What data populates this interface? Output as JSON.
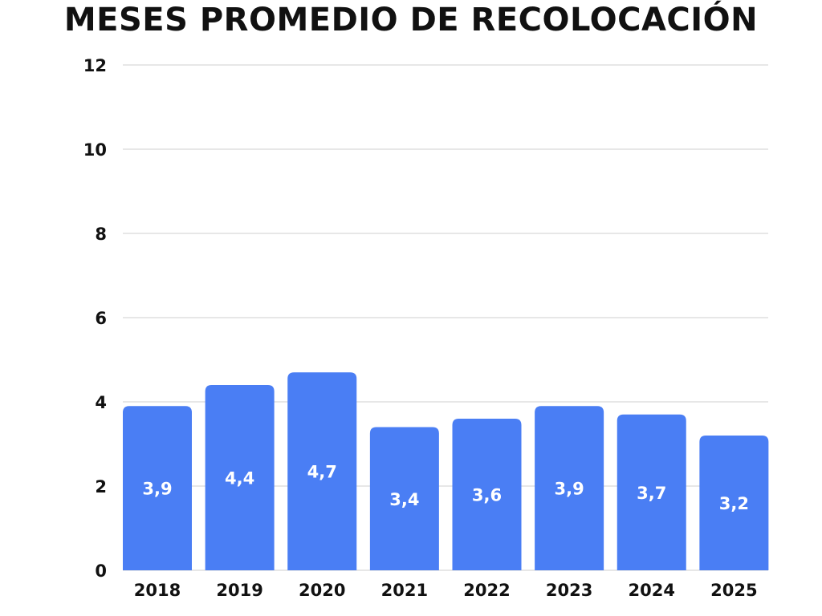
{
  "chart_data": {
    "type": "bar",
    "title": "MESES PROMEDIO DE RECOLOCACIÓN",
    "xlabel": "",
    "ylabel": "",
    "categories": [
      "2018",
      "2019",
      "2020",
      "2021",
      "2022",
      "2023",
      "2024",
      "2025"
    ],
    "values": [
      3.9,
      4.4,
      4.7,
      3.4,
      3.6,
      3.9,
      3.7,
      3.2
    ],
    "data_labels": [
      "3,9",
      "4,4",
      "4,7",
      "3,4",
      "3,6",
      "3,9",
      "3,7",
      "3,2"
    ],
    "ylim": [
      0,
      12
    ],
    "yticks": [
      0,
      2,
      4,
      6,
      8,
      10,
      12
    ],
    "grid": true,
    "legend": "none",
    "bar_color": "#4a7ef4"
  }
}
